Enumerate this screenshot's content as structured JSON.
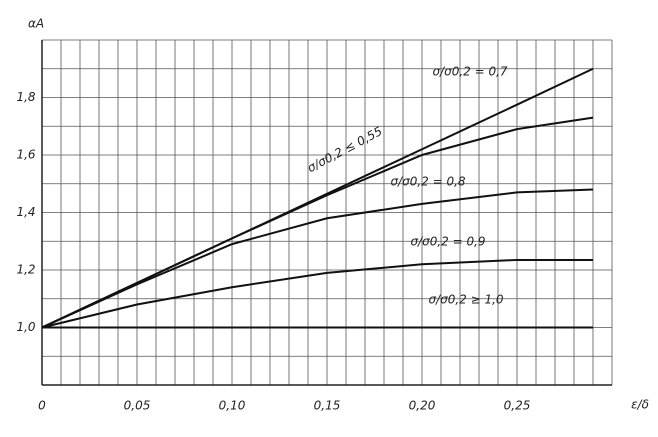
{
  "chart_data": {
    "type": "line",
    "y_label": "αA",
    "x_label": "ε/δ",
    "x": [
      0,
      0.05,
      0.1,
      0.15,
      0.2,
      0.25,
      0.29
    ],
    "series": [
      {
        "name": "σ/σ0,2 ≤ 0,55",
        "color": "#111111",
        "values": [
          1.0,
          1.155,
          1.31,
          1.465,
          1.62,
          1.775,
          1.9
        ]
      },
      {
        "name": "σ/σ0,2 = 0,7",
        "color": "#111111",
        "values": [
          1.0,
          1.155,
          1.31,
          1.46,
          1.6,
          1.69,
          1.73
        ]
      },
      {
        "name": "σ/σ0,2 = 0,8",
        "color": "#111111",
        "values": [
          1.0,
          1.15,
          1.29,
          1.38,
          1.43,
          1.47,
          1.48
        ]
      },
      {
        "name": "σ/σ0,2 = 0,9",
        "color": "#111111",
        "values": [
          1.0,
          1.08,
          1.14,
          1.19,
          1.22,
          1.235,
          1.235
        ]
      },
      {
        "name": "σ/σ0,2 ≥ 1,0",
        "color": "#111111",
        "values": [
          1.0,
          1.0,
          1.0,
          1.0,
          1.0,
          1.0,
          1.0
        ]
      }
    ],
    "xlim": [
      0,
      0.3
    ],
    "ylim": [
      0.8,
      2.0
    ],
    "xticks": [
      0,
      {
        "value": 0.05,
        "label": "0,05"
      },
      {
        "value": 0.1,
        "label": "0,10"
      },
      {
        "value": 0.15,
        "label": "0,15"
      },
      {
        "value": 0.2,
        "label": "0,20"
      },
      {
        "value": 0.25,
        "label": "0,25"
      }
    ],
    "yticks": [
      {
        "value": 1.0,
        "label": "1,0"
      },
      {
        "value": 1.2,
        "label": "1,2"
      },
      {
        "value": 1.4,
        "label": "1,4"
      },
      {
        "value": 1.6,
        "label": "1,6"
      },
      {
        "value": 1.8,
        "label": "1,8"
      }
    ],
    "minor_xticks": [
      0.01,
      0.02,
      0.03,
      0.04,
      0.06,
      0.07,
      0.08,
      0.09,
      0.11,
      0.12,
      0.13,
      0.14,
      0.16,
      0.17,
      0.18,
      0.19,
      0.21,
      0.22,
      0.23,
      0.24,
      0.26,
      0.27,
      0.28,
      0.29,
      0.3
    ],
    "minor_yticks": [
      0.9,
      1.1,
      1.3,
      1.5,
      1.7,
      1.9,
      2.0
    ],
    "grid": true
  }
}
